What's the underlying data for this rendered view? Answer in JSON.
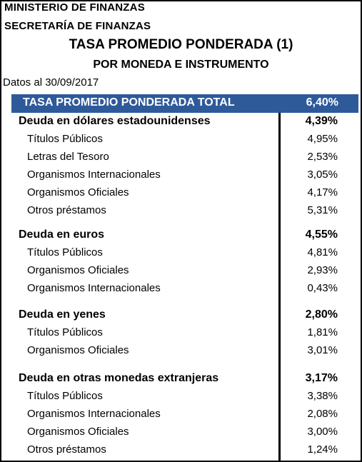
{
  "header": {
    "line1": "MINISTERIO DE FINANZAS",
    "line2": "SECRETARÍA DE FINANZAS",
    "title": "TASA PROMEDIO PONDERADA (1)",
    "subtitle": "POR MONEDA E INSTRUMENTO",
    "date": "Datos al 30/09/2017"
  },
  "total": {
    "label": "TASA PROMEDIO PONDERADA TOTAL",
    "value": "6,40%"
  },
  "groups": [
    {
      "label": "Deuda en dólares estadounidenses",
      "value": "4,39%",
      "items": [
        {
          "label": "Títulos Públicos",
          "value": "4,95%"
        },
        {
          "label": "Letras del Tesoro",
          "value": "2,53%"
        },
        {
          "label": "Organismos Internacionales",
          "value": "3,05%"
        },
        {
          "label": "Organismos Oficiales",
          "value": "4,17%"
        },
        {
          "label": "Otros préstamos",
          "value": "5,31%"
        }
      ]
    },
    {
      "label": "Deuda en euros",
      "value": "4,55%",
      "items": [
        {
          "label": "Títulos Públicos",
          "value": "4,81%"
        },
        {
          "label": "Organismos Oficiales",
          "value": "2,93%"
        },
        {
          "label": "Organismos Internacionales",
          "value": "0,43%"
        }
      ]
    },
    {
      "label": "Deuda en yenes",
      "value": "2,80%",
      "items": [
        {
          "label": "Títulos Públicos",
          "value": "1,81%"
        },
        {
          "label": "Organismos Oficiales",
          "value": "3,01%"
        }
      ]
    },
    {
      "label": "Deuda en otras monedas extranjeras",
      "value": "3,17%",
      "items": [
        {
          "label": "Títulos Públicos",
          "value": "3,38%"
        },
        {
          "label": "Organismos Internacionales",
          "value": "2,08%"
        },
        {
          "label": "Organismos Oficiales",
          "value": "3,00%"
        },
        {
          "label": "Otros préstamos",
          "value": "1,24%"
        }
      ]
    }
  ],
  "colors": {
    "total_bar": "#2e5a9a",
    "total_text": "#ffffff"
  }
}
